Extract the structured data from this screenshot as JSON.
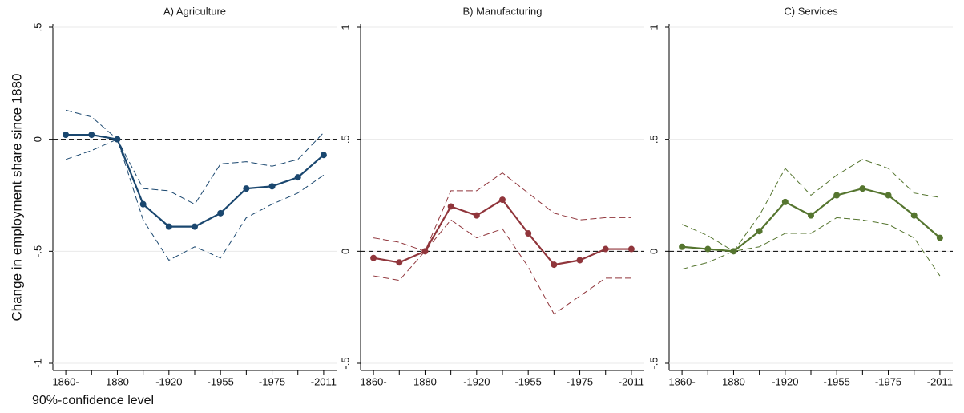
{
  "ylabel": "Change in employment share since 1880",
  "note": "90%-confidence level",
  "chart_data": [
    {
      "type": "line",
      "title": "A) Agriculture",
      "categories": [
        "1860-",
        null,
        "1880",
        null,
        "-1920",
        null,
        "-1955",
        null,
        "-1975",
        null,
        "-2011"
      ],
      "ylim": [
        -1,
        0.5
      ],
      "yticks": [
        -1,
        {
          "value": -0.5,
          "label": "-.5"
        },
        0,
        {
          "value": 0.5,
          "label": ".5"
        }
      ],
      "grid": true,
      "refline": 0,
      "series": [
        {
          "color": "#1a476f",
          "markers": true,
          "values": [
            0.02,
            0.02,
            0,
            -0.29,
            -0.39,
            -0.39,
            -0.33,
            -0.22,
            -0.21,
            -0.17,
            -0.07
          ]
        },
        {
          "color": "#1a476f",
          "dashed": true,
          "values": [
            0.13,
            0.1,
            0,
            -0.22,
            -0.23,
            -0.29,
            -0.11,
            -0.1,
            -0.12,
            -0.09,
            0.03
          ]
        },
        {
          "color": "#1a476f",
          "dashed": true,
          "values": [
            -0.09,
            -0.05,
            0,
            -0.36,
            -0.54,
            -0.48,
            -0.53,
            -0.35,
            -0.29,
            -0.24,
            -0.16
          ]
        }
      ]
    },
    {
      "type": "line",
      "title": "B) Manufacturing",
      "categories": [
        "1860-",
        null,
        "1880",
        null,
        "-1920",
        null,
        "-1955",
        null,
        "-1975",
        null,
        "-2011"
      ],
      "ylim": [
        -0.5,
        1
      ],
      "yticks": [
        {
          "value": -0.5,
          "label": "-.5"
        },
        0,
        {
          "value": 0.5,
          "label": ".5"
        },
        1
      ],
      "grid": true,
      "refline": 0,
      "series": [
        {
          "color": "#90353b",
          "markers": true,
          "values": [
            -0.03,
            -0.05,
            0,
            0.2,
            0.16,
            0.23,
            0.08,
            -0.06,
            -0.04,
            0.01,
            0.01
          ]
        },
        {
          "color": "#90353b",
          "dashed": true,
          "values": [
            0.06,
            0.04,
            0,
            0.27,
            0.27,
            0.35,
            0.26,
            0.17,
            0.14,
            0.15,
            0.15
          ]
        },
        {
          "color": "#90353b",
          "dashed": true,
          "values": [
            -0.11,
            -0.13,
            0,
            0.14,
            0.06,
            0.1,
            -0.07,
            -0.28,
            -0.2,
            -0.12,
            -0.12
          ]
        }
      ]
    },
    {
      "type": "line",
      "title": "C) Services",
      "categories": [
        "1860-",
        null,
        "1880",
        null,
        "-1920",
        null,
        "-1955",
        null,
        "-1975",
        null,
        "-2011"
      ],
      "ylim": [
        -0.5,
        1
      ],
      "yticks": [
        {
          "value": -0.5,
          "label": "-.5"
        },
        0,
        {
          "value": 0.5,
          "label": ".5"
        },
        1
      ],
      "grid": true,
      "refline": 0,
      "series": [
        {
          "color": "#55752f",
          "markers": true,
          "values": [
            0.02,
            0.01,
            0,
            0.09,
            0.22,
            0.16,
            0.25,
            0.28,
            0.25,
            0.16,
            0.06
          ]
        },
        {
          "color": "#55752f",
          "dashed": true,
          "values": [
            0.12,
            0.07,
            0,
            0.16,
            0.37,
            0.25,
            0.34,
            0.41,
            0.37,
            0.26,
            0.24
          ]
        },
        {
          "color": "#55752f",
          "dashed": true,
          "values": [
            -0.08,
            -0.05,
            0,
            0.02,
            0.08,
            0.08,
            0.15,
            0.14,
            0.12,
            0.06,
            -0.11
          ]
        }
      ]
    }
  ]
}
